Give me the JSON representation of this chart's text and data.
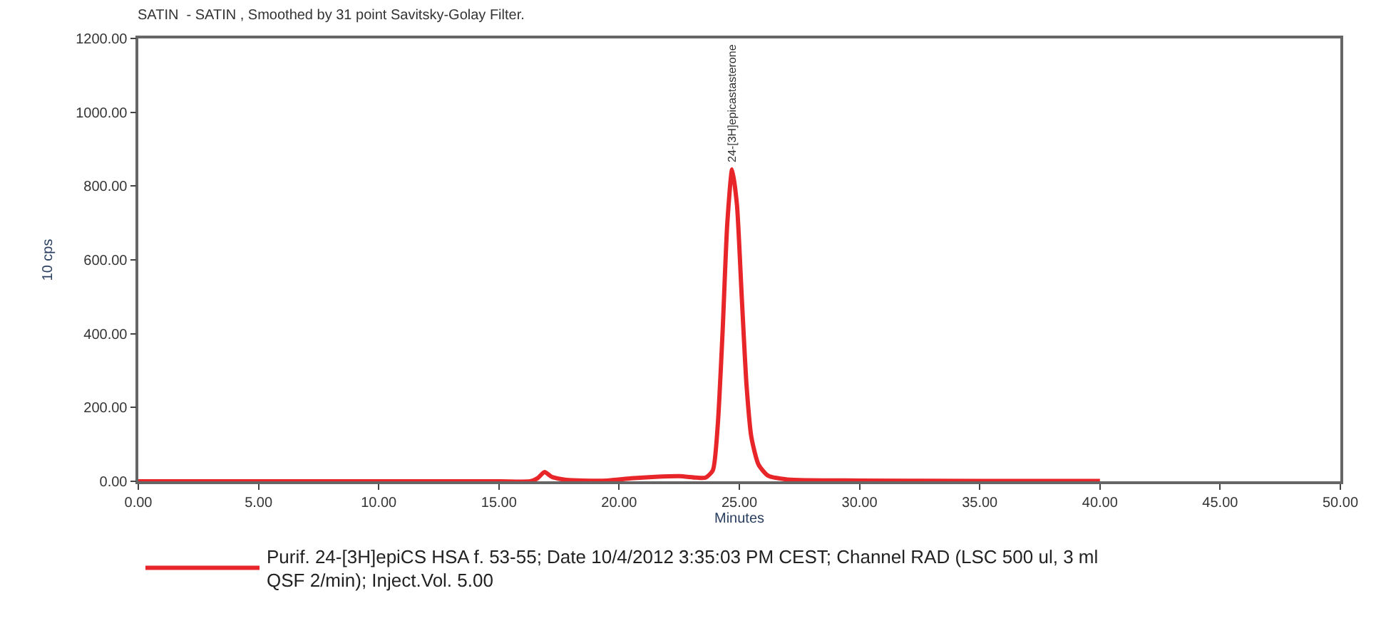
{
  "chart_data": {
    "type": "line",
    "title": "SATIN  - SATIN , Smoothed by 31 point Savitsky-Golay Filter.",
    "xlabel": "Minutes",
    "ylabel": "10 cps",
    "x": [
      0,
      10,
      15,
      16.3,
      16.6,
      16.9,
      17.2,
      17.8,
      18.5,
      19.5,
      20.5,
      21.5,
      22.5,
      23.2,
      23.6,
      23.9,
      24.1,
      24.3,
      24.5,
      24.7,
      24.9,
      25.1,
      25.3,
      25.5,
      25.8,
      26.2,
      27,
      30,
      35,
      40
    ],
    "series": [
      {
        "name": "Purif. 24-[3H]epiCS HSA f. 53-55; Date 10/4/2012 3:35:03 PM CEST; Channel RAD (LSC 500 ul, 3 ml QSF 2/min); Inject.Vol. 5.00",
        "color": "#e8262a",
        "values": [
          0,
          0,
          0,
          0,
          8,
          25,
          12,
          4,
          2,
          2,
          8,
          12,
          14,
          10,
          10,
          30,
          150,
          400,
          700,
          845,
          750,
          500,
          260,
          120,
          45,
          15,
          5,
          2,
          1,
          1
        ]
      }
    ],
    "annotations": [
      {
        "text": "24-[3H]epicastasterone",
        "x": 24.7,
        "y": 845
      }
    ],
    "xlim": [
      0,
      50
    ],
    "ylim": [
      0,
      1200
    ],
    "xticks": [
      {
        "value": 0,
        "label": "0.00"
      },
      {
        "value": 5,
        "label": "5.00"
      },
      {
        "value": 10,
        "label": "10.00"
      },
      {
        "value": 15,
        "label": "15.00"
      },
      {
        "value": 20,
        "label": "20.00"
      },
      {
        "value": 25,
        "label": "25.00"
      },
      {
        "value": 30,
        "label": "30.00"
      },
      {
        "value": 35,
        "label": "35.00"
      },
      {
        "value": 40,
        "label": "40.00"
      },
      {
        "value": 45,
        "label": "45.00"
      },
      {
        "value": 50,
        "label": "50.00"
      }
    ],
    "yticks": [
      {
        "value": 0,
        "label": "0.00"
      },
      {
        "value": 200,
        "label": "200.00"
      },
      {
        "value": 400,
        "label": "400.00"
      },
      {
        "value": 600,
        "label": "600.00"
      },
      {
        "value": 800,
        "label": "800.00"
      },
      {
        "value": 1000,
        "label": "1000.00"
      },
      {
        "value": 1200,
        "label": "1200.00"
      }
    ],
    "legend": "bottom",
    "marker": "none",
    "line_style": "solid"
  }
}
